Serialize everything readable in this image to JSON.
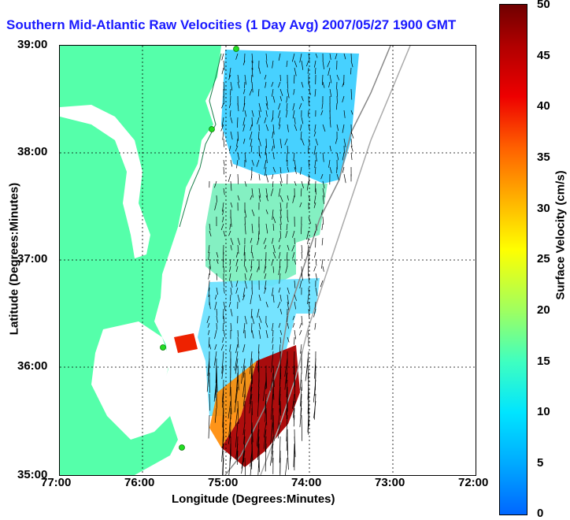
{
  "title": "Southern Mid-Atlantic Raw Velocities (1 Day Avg) 2007/05/27 1900 GMT",
  "axes": {
    "xlabel": "Longitude (Degrees:Minutes)",
    "ylabel": "Latitude (Degrees:Minutes)",
    "xticks": [
      "77:00",
      "76:00",
      "75:00",
      "74:00",
      "73:00",
      "72:00"
    ],
    "yticks": [
      "39:00",
      "38:00",
      "37:00",
      "36:00",
      "35:00"
    ]
  },
  "colorbar": {
    "label": "Surface Velocity (cm/s)",
    "ticks": [
      "50",
      "45",
      "40",
      "35",
      "30",
      "25",
      "20",
      "15",
      "10",
      "5",
      "0"
    ],
    "range": [
      0,
      50
    ]
  },
  "colors": {
    "land": "#55ffaa",
    "title": "#1a1aff",
    "station": "#22dd22"
  },
  "map_extent": {
    "lon": [
      -77,
      -72
    ],
    "lat": [
      35,
      39
    ]
  }
}
